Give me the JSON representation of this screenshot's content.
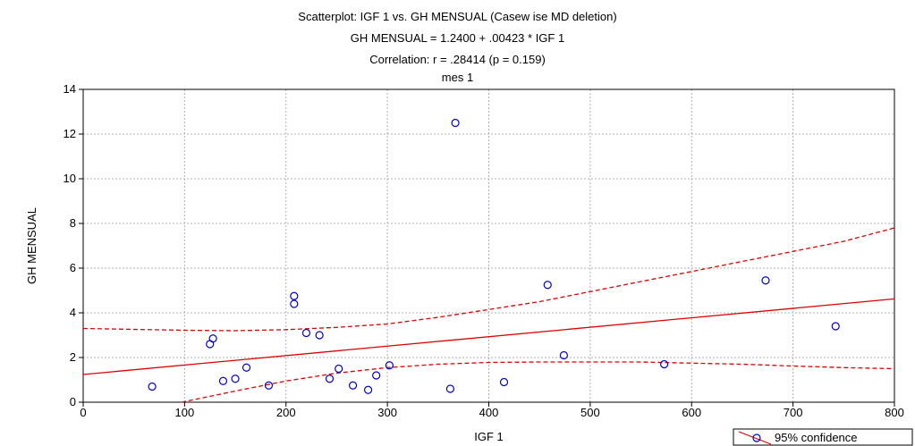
{
  "chart_data": {
    "type": "scatter",
    "title": "Scatterplot: IGF 1 vs. GH MENSUAL (Casew ise MD deletion)",
    "subtitle_equation": "GH MENSUAL = 1.2400 + .00423 * IGF 1",
    "subtitle_correlation": "Correlation: r = .28414 (p = 0.159)",
    "subtitle_group": "mes 1",
    "xlabel": "IGF 1",
    "ylabel": "GH MENSUAL",
    "xlim": [
      0,
      800
    ],
    "ylim": [
      0,
      14
    ],
    "x_ticks": [
      "0",
      "100",
      "200",
      "300",
      "400",
      "500",
      "600",
      "700",
      "800"
    ],
    "y_ticks": [
      "0",
      "2",
      "4",
      "6",
      "8",
      "10",
      "12",
      "14"
    ],
    "grid": true,
    "points": [
      {
        "x": 68,
        "y": 0.7
      },
      {
        "x": 125,
        "y": 2.6
      },
      {
        "x": 128,
        "y": 2.85
      },
      {
        "x": 138,
        "y": 0.95
      },
      {
        "x": 150,
        "y": 1.05
      },
      {
        "x": 161,
        "y": 1.55
      },
      {
        "x": 183,
        "y": 0.75
      },
      {
        "x": 208,
        "y": 4.75
      },
      {
        "x": 208,
        "y": 4.4
      },
      {
        "x": 220,
        "y": 3.1
      },
      {
        "x": 233,
        "y": 3.0
      },
      {
        "x": 243,
        "y": 1.05
      },
      {
        "x": 252,
        "y": 1.5
      },
      {
        "x": 266,
        "y": 0.75
      },
      {
        "x": 281,
        "y": 0.55
      },
      {
        "x": 289,
        "y": 1.2
      },
      {
        "x": 302,
        "y": 1.65
      },
      {
        "x": 362,
        "y": 0.6
      },
      {
        "x": 367,
        "y": 12.5
      },
      {
        "x": 415,
        "y": 0.9
      },
      {
        "x": 458,
        "y": 5.25
      },
      {
        "x": 474,
        "y": 2.1
      },
      {
        "x": 573,
        "y": 1.7
      },
      {
        "x": 673,
        "y": 5.45
      },
      {
        "x": 742,
        "y": 3.4
      }
    ],
    "regression": {
      "intercept": 1.24,
      "slope": 0.00423
    },
    "ci_upper": [
      [
        0,
        3.3
      ],
      [
        100,
        3.22
      ],
      [
        150,
        3.2
      ],
      [
        200,
        3.25
      ],
      [
        250,
        3.35
      ],
      [
        300,
        3.5
      ],
      [
        350,
        3.8
      ],
      [
        400,
        4.15
      ],
      [
        450,
        4.5
      ],
      [
        500,
        4.95
      ],
      [
        550,
        5.4
      ],
      [
        600,
        5.85
      ],
      [
        650,
        6.3
      ],
      [
        700,
        6.75
      ],
      [
        750,
        7.2
      ],
      [
        800,
        7.8
      ]
    ],
    "ci_lower": [
      [
        97,
        0.0
      ],
      [
        150,
        0.5
      ],
      [
        200,
        0.95
      ],
      [
        250,
        1.3
      ],
      [
        300,
        1.55
      ],
      [
        350,
        1.7
      ],
      [
        400,
        1.78
      ],
      [
        450,
        1.8
      ],
      [
        500,
        1.8
      ],
      [
        550,
        1.8
      ],
      [
        600,
        1.75
      ],
      [
        650,
        1.7
      ],
      [
        700,
        1.62
      ],
      [
        750,
        1.55
      ],
      [
        800,
        1.5
      ]
    ],
    "legend": [
      {
        "label": "95% confidence"
      }
    ],
    "legend_placement": "bottom-right",
    "colors": {
      "points": "#0000cc",
      "fit": "#dd0000",
      "grid": "#b0b0b0"
    }
  }
}
